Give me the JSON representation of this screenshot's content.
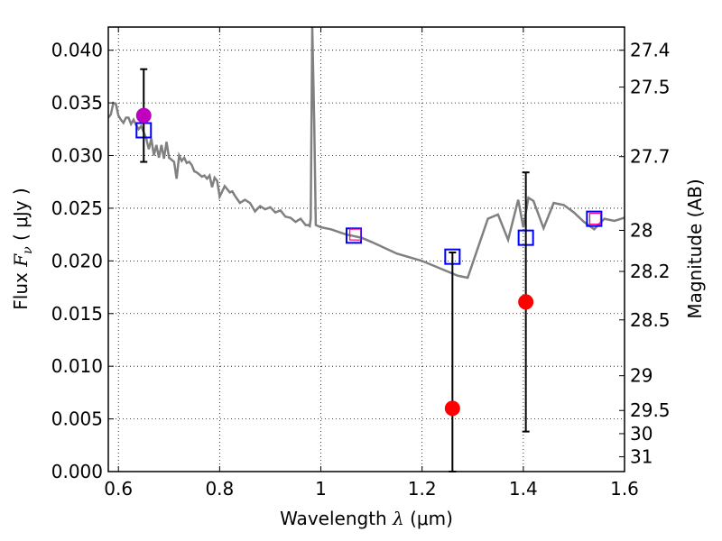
{
  "chart_data": {
    "type": "scatter",
    "xlabel": "Wavelength",
    "xlabel_symbol": "λ",
    "xlabel_unit": "(μm)",
    "ylabel_left": "Flux",
    "ylabel_left_symbol": "F",
    "ylabel_left_subscript": "ν",
    "ylabel_left_unit": "( μJy )",
    "ylabel_right": "Magnitude (AB)",
    "xlim": [
      0.58,
      1.6
    ],
    "ylim": [
      0.0,
      0.0422
    ],
    "grid": true,
    "x_ticks": [
      0.6,
      0.8,
      1.0,
      1.2,
      1.4,
      1.6
    ],
    "x_tick_labels": [
      "0.6",
      "0.8",
      "1",
      "1.2",
      "1.4",
      "1.6"
    ],
    "y_ticks": [
      0.0,
      0.005,
      0.01,
      0.015,
      0.02,
      0.025,
      0.03,
      0.035,
      0.04
    ],
    "y_tick_labels": [
      "0.000",
      "0.005",
      "0.010",
      "0.015",
      "0.020",
      "0.025",
      "0.030",
      "0.035",
      "0.040"
    ],
    "right_ticks": [
      {
        "label": "27.4",
        "flux": 0.04
      },
      {
        "label": "27.5",
        "flux": 0.0365
      },
      {
        "label": "27.7",
        "flux": 0.0299
      },
      {
        "label": "28",
        "flux": 0.0229
      },
      {
        "label": "28.2",
        "flux": 0.019
      },
      {
        "label": "28.5",
        "flux": 0.0144
      },
      {
        "label": "29",
        "flux": 0.0091
      },
      {
        "label": "29.5",
        "flux": 0.0058
      },
      {
        "label": "30",
        "flux": 0.0036
      },
      {
        "label": "31",
        "flux": 0.0014
      }
    ],
    "series": [
      {
        "name": "model spectrum",
        "kind": "line",
        "color": "#808080",
        "x": [
          0.58,
          0.585,
          0.59,
          0.595,
          0.6,
          0.605,
          0.61,
          0.615,
          0.62,
          0.625,
          0.63,
          0.635,
          0.64,
          0.645,
          0.65,
          0.655,
          0.66,
          0.665,
          0.67,
          0.675,
          0.68,
          0.685,
          0.69,
          0.695,
          0.7,
          0.705,
          0.71,
          0.715,
          0.72,
          0.725,
          0.73,
          0.735,
          0.74,
          0.745,
          0.75,
          0.755,
          0.76,
          0.765,
          0.77,
          0.775,
          0.78,
          0.785,
          0.79,
          0.795,
          0.8,
          0.81,
          0.82,
          0.825,
          0.83,
          0.84,
          0.85,
          0.86,
          0.87,
          0.88,
          0.89,
          0.9,
          0.91,
          0.92,
          0.93,
          0.94,
          0.95,
          0.96,
          0.97,
          0.975,
          0.978,
          0.98,
          0.983,
          0.987,
          0.99,
          1.0,
          1.02,
          1.05,
          1.08,
          1.1,
          1.15,
          1.2,
          1.25,
          1.27,
          1.29,
          1.33,
          1.35,
          1.37,
          1.39,
          1.4,
          1.41,
          1.42,
          1.44,
          1.46,
          1.48,
          1.5,
          1.52,
          1.54,
          1.56,
          1.58,
          1.6
        ],
        "y": [
          0.0336,
          0.0339,
          0.035,
          0.0349,
          0.0338,
          0.0334,
          0.0331,
          0.0336,
          0.0336,
          0.033,
          0.0334,
          0.0329,
          0.0325,
          0.0328,
          0.0322,
          0.0316,
          0.0306,
          0.0316,
          0.03,
          0.031,
          0.0298,
          0.031,
          0.0297,
          0.0313,
          0.0298,
          0.0296,
          0.0294,
          0.0278,
          0.03,
          0.0295,
          0.0298,
          0.0293,
          0.0294,
          0.0291,
          0.0285,
          0.0284,
          0.0282,
          0.028,
          0.0281,
          0.0278,
          0.0281,
          0.027,
          0.0279,
          0.0276,
          0.0261,
          0.0271,
          0.0265,
          0.0266,
          0.0262,
          0.0255,
          0.0258,
          0.0255,
          0.0247,
          0.0252,
          0.0249,
          0.0251,
          0.0246,
          0.0248,
          0.0242,
          0.0241,
          0.0237,
          0.024,
          0.0234,
          0.0234,
          0.0233,
          0.024,
          0.0422,
          0.033,
          0.0234,
          0.0232,
          0.023,
          0.0225,
          0.0222,
          0.0218,
          0.0207,
          0.02,
          0.019,
          0.0186,
          0.0184,
          0.024,
          0.0244,
          0.022,
          0.0258,
          0.0232,
          0.026,
          0.0257,
          0.0231,
          0.0255,
          0.0253,
          0.0246,
          0.0237,
          0.023,
          0.024,
          0.0238,
          0.0241
        ]
      },
      {
        "name": "model photometry",
        "kind": "square",
        "color": "#0000ff",
        "x": [
          0.65,
          1.065,
          1.26,
          1.405,
          1.54
        ],
        "y": [
          0.0324,
          0.0224,
          0.0204,
          0.0222,
          0.024
        ]
      },
      {
        "name": "magenta squares",
        "kind": "square-small",
        "color": "#ff0080",
        "x": [
          1.068,
          1.542
        ],
        "y": [
          0.0225,
          0.024
        ]
      },
      {
        "name": "observed flux",
        "kind": "circle",
        "x": [
          0.65,
          1.26,
          1.405
        ],
        "y": [
          0.0338,
          0.006,
          0.0161
        ],
        "colors": [
          "#bf00bf",
          "#ff0000",
          "#ff0000"
        ],
        "err_low": [
          0.0044,
          0.006,
          0.0123
        ],
        "err_high": [
          0.0044,
          0.0148,
          0.0123
        ]
      }
    ]
  }
}
